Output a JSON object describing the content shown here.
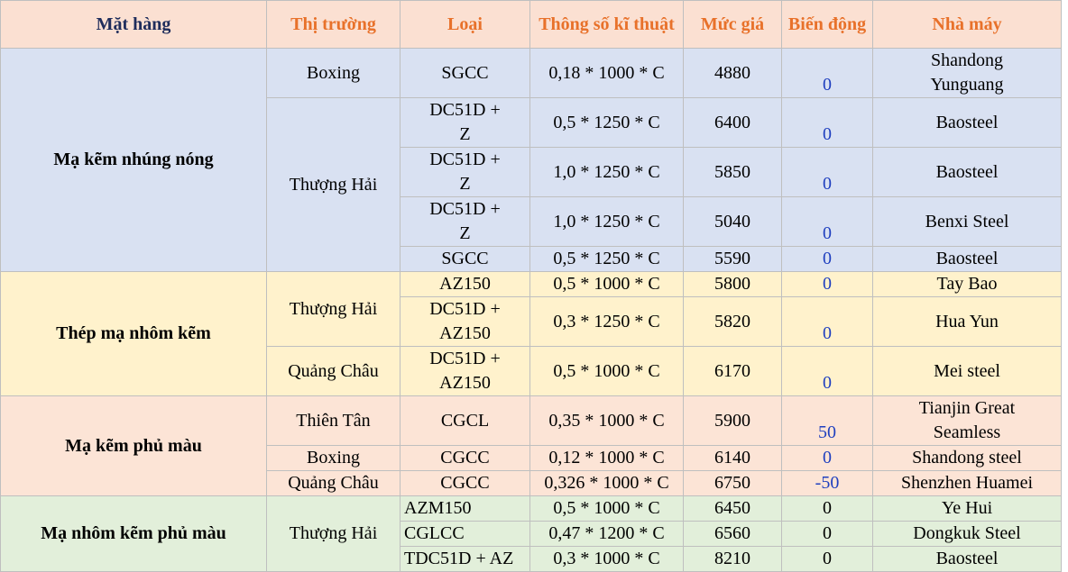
{
  "table": {
    "headers": [
      "Mặt hàng",
      "Thị trường",
      "Loại",
      "Thông số kĩ thuật",
      "Mức giá",
      "Biến động",
      "Nhà máy"
    ],
    "groups": [
      {
        "name": "Mạ kẽm nhúng nóng",
        "markets": [
          {
            "name": "Boxing",
            "rows": [
              {
                "type": "SGCC",
                "spec": "0,18 * 1000 * C",
                "price": 4880,
                "change": 0,
                "factory": "Shandong Yunguang"
              }
            ]
          },
          {
            "name": "Thượng Hải",
            "rows": [
              {
                "type": "DC51D + Z",
                "spec": "0,5 * 1250 * C",
                "price": 6400,
                "change": 0,
                "factory": "Baosteel"
              },
              {
                "type": "DC51D + Z",
                "spec": "1,0 * 1250 * C",
                "price": 5850,
                "change": 0,
                "factory": "Baosteel"
              },
              {
                "type": "DC51D + Z",
                "spec": "1,0 * 1250 * C",
                "price": 5040,
                "change": 0,
                "factory": "Benxi Steel"
              },
              {
                "type": "SGCC",
                "spec": "0,5 * 1250 * C",
                "price": 5590,
                "change": 0,
                "factory": "Baosteel"
              }
            ]
          }
        ]
      },
      {
        "name": "Thép mạ nhôm kẽm",
        "markets": [
          {
            "name": "Thượng Hải",
            "rows": [
              {
                "type": "AZ150",
                "spec": "0,5 * 1000 * C",
                "price": 5800,
                "change": 0,
                "factory": "Tay Bao"
              },
              {
                "type": "DC51D + AZ150",
                "spec": "0,3 * 1250 * C",
                "price": 5820,
                "change": 0,
                "factory": "Hua Yun"
              }
            ]
          },
          {
            "name": "Quảng Châu",
            "rows": [
              {
                "type": "DC51D + AZ150",
                "spec": "0,5 * 1000 * C",
                "price": 6170,
                "change": 0,
                "factory": "Mei steel"
              }
            ]
          }
        ]
      },
      {
        "name": "Mạ kẽm phủ màu",
        "markets": [
          {
            "name": "Thiên Tân",
            "rows": [
              {
                "type": "CGCL",
                "spec": "0,35 * 1000 * C",
                "price": 5900,
                "change": 50,
                "factory": "Tianjin Great Seamless"
              }
            ]
          },
          {
            "name": "Boxing",
            "rows": [
              {
                "type": "CGCC",
                "spec": "0,12 * 1000 * C",
                "price": 6140,
                "change": 0,
                "factory": "Shandong steel"
              }
            ]
          },
          {
            "name": "Quảng Châu",
            "rows": [
              {
                "type": "CGCC",
                "spec": "0,326 * 1000 * C",
                "price": 6750,
                "change": -50,
                "factory": "Shenzhen Huamei"
              }
            ]
          }
        ]
      },
      {
        "name": "Mạ nhôm kẽm phủ màu",
        "markets": [
          {
            "name": "Thượng Hải",
            "rows": [
              {
                "type": "AZM150",
                "spec": "0,5 * 1000 * C",
                "price": 6450,
                "change": 0,
                "factory": "Ye Hui"
              },
              {
                "type": "CGLCC",
                "spec": "0,47 * 1200 * C",
                "price": 6560,
                "change": 0,
                "factory": "Dongkuk Steel"
              },
              {
                "type": "TDC51D + AZ",
                "spec": "0,3 * 1000 * C",
                "price": 8210,
                "change": 0,
                "factory": "Baosteel"
              }
            ]
          }
        ]
      }
    ]
  }
}
